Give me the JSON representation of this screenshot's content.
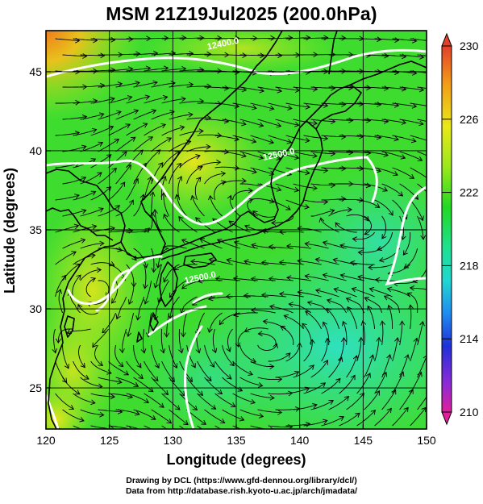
{
  "title": "MSM 21Z19Jul2025 (200.0hPa)",
  "map": {
    "x_label": "Longitude (degrees)",
    "y_label": "Latitude  (degrees)",
    "x_ticks": [
      "120",
      "125",
      "130",
      "135",
      "140",
      "145",
      "150"
    ],
    "y_ticks": [
      "25",
      "30",
      "35",
      "40",
      "45"
    ],
    "x_range": [
      120,
      150
    ],
    "y_range": [
      22.4,
      47.6
    ],
    "grid_lon": [
      125,
      130,
      135,
      140,
      145
    ],
    "grid_lat": [
      25,
      30,
      35,
      40,
      45
    ],
    "grid": true,
    "contour_labels": [
      {
        "text": "12400.0",
        "lon": 134.0,
        "lat": 46.6
      },
      {
        "text": "12500.0",
        "lon": 138.4,
        "lat": 39.6
      },
      {
        "text": "12500.0",
        "lon": 132.2,
        "lat": 31.8
      }
    ]
  },
  "colorbar": {
    "ticks": [
      "230",
      "226",
      "222",
      "218",
      "214",
      "210"
    ],
    "range": [
      210,
      230
    ],
    "colors": [
      "#e0209a",
      "#8a2bd8",
      "#2030d8",
      "#1f8cf0",
      "#1fd8cf",
      "#1fe090",
      "#22d822",
      "#9be81c",
      "#e8e81a",
      "#f29a18",
      "#e2402a"
    ]
  },
  "credits": {
    "line1": "Drawing by DCL (https://www.gfd-dennou.org/library/dcl/)",
    "line2": "Data from http://database.rish.kyoto-u.ac.jp/arch/jmadata/"
  },
  "colors": {
    "coast": "#000000",
    "stream": "#000000",
    "contour": "#ffffff",
    "grid": "#000000"
  }
}
